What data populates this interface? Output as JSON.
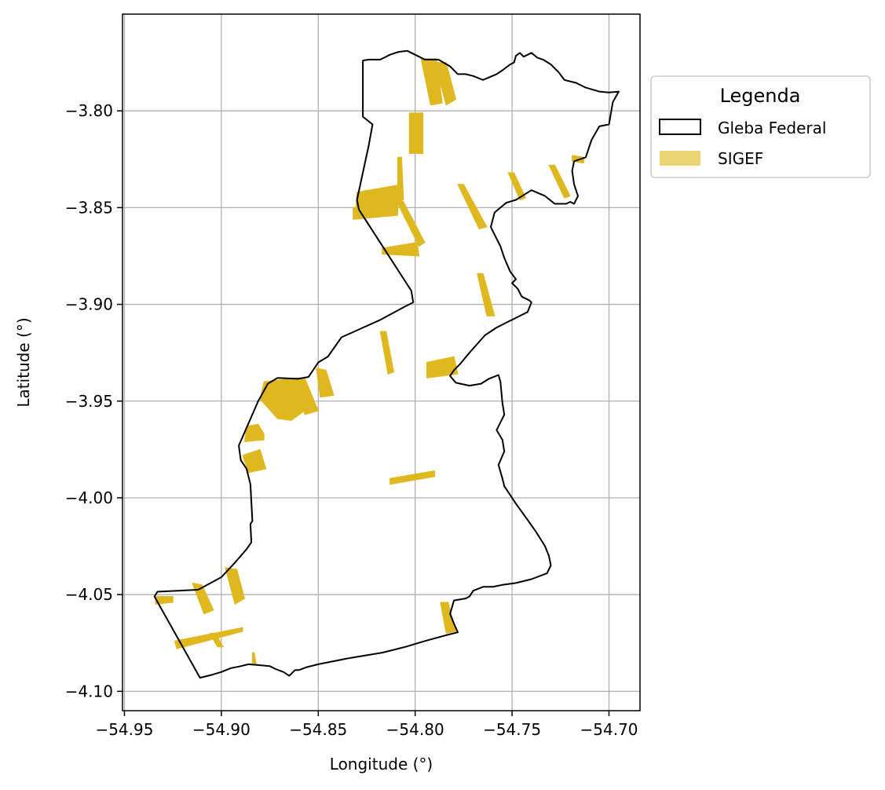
{
  "chart_data": {
    "type": "map",
    "xlabel": "Longitude (°)",
    "ylabel": "Latitude (°)",
    "xlim": [
      -54.951,
      -54.684
    ],
    "ylim": [
      -4.11,
      -3.75
    ],
    "x_ticks": [
      -54.95,
      -54.9,
      -54.85,
      -54.8,
      -54.75,
      -54.7
    ],
    "x_tick_labels": [
      "−54.95",
      "−54.90",
      "−54.85",
      "−54.80",
      "−54.75",
      "−54.70"
    ],
    "y_ticks": [
      -3.8,
      -3.85,
      -3.9,
      -3.95,
      -4.0,
      -4.05,
      -4.1
    ],
    "y_tick_labels": [
      "−3.80",
      "−3.85",
      "−3.90",
      "−3.95",
      "−4.00",
      "−4.05",
      "−4.10"
    ],
    "grid": true,
    "legend": {
      "title": "Legenda",
      "placement": "outside-right-top",
      "entries": [
        {
          "label": "Gleba Federal",
          "style": "outline",
          "color": "#000000"
        },
        {
          "label": "SIGEF",
          "style": "fill",
          "color": "#e9d673"
        }
      ]
    },
    "colors": {
      "gleba_edge": "#000000",
      "sigef_fill": "#dfb820",
      "grid": "#b0b0b0"
    },
    "gleba_federal": [
      [
        -54.9345,
        -4.051
      ],
      [
        -54.933,
        -4.0485
      ],
      [
        -54.912,
        -4.0475
      ],
      [
        -54.9,
        -4.041
      ],
      [
        -54.893,
        -4.0335
      ],
      [
        -54.887,
        -4.0265
      ],
      [
        -54.8845,
        -4.023
      ],
      [
        -54.885,
        -4.0135
      ],
      [
        -54.884,
        -4.012
      ],
      [
        -54.885,
        -3.993
      ],
      [
        -54.887,
        -3.985
      ],
      [
        -54.89,
        -3.9805
      ],
      [
        -54.891,
        -3.973
      ],
      [
        -54.881,
        -3.95
      ],
      [
        -54.876,
        -3.941
      ],
      [
        -54.871,
        -3.938
      ],
      [
        -54.8605,
        -3.9385
      ],
      [
        -54.855,
        -3.9375
      ],
      [
        -54.85,
        -3.93
      ],
      [
        -54.845,
        -3.927
      ],
      [
        -54.838,
        -3.917
      ],
      [
        -54.818,
        -3.908
      ],
      [
        -54.805,
        -3.901
      ],
      [
        -54.801,
        -3.899
      ],
      [
        -54.802,
        -3.893
      ],
      [
        -54.829,
        -3.851
      ],
      [
        -54.83,
        -3.846
      ],
      [
        -54.824,
        -3.818
      ],
      [
        -54.822,
        -3.807
      ],
      [
        -54.827,
        -3.803
      ],
      [
        -54.827,
        -3.774
      ],
      [
        -54.824,
        -3.7735
      ],
      [
        -54.818,
        -3.7735
      ],
      [
        -54.813,
        -3.771
      ],
      [
        -54.8085,
        -3.7695
      ],
      [
        -54.804,
        -3.769
      ],
      [
        -54.8,
        -3.771
      ],
      [
        -54.795,
        -3.7735
      ],
      [
        -54.788,
        -3.7735
      ],
      [
        -54.782,
        -3.777
      ],
      [
        -54.778,
        -3.781
      ],
      [
        -54.774,
        -3.781
      ],
      [
        -54.77,
        -3.782
      ],
      [
        -54.765,
        -3.784
      ],
      [
        -54.758,
        -3.781
      ],
      [
        -54.755,
        -3.779
      ],
      [
        -54.751,
        -3.776
      ],
      [
        -54.749,
        -3.775
      ],
      [
        -54.748,
        -3.7715
      ],
      [
        -54.746,
        -3.77
      ],
      [
        -54.744,
        -3.772
      ],
      [
        -54.74,
        -3.77
      ],
      [
        -54.737,
        -3.7725
      ],
      [
        -54.734,
        -3.7735
      ],
      [
        -54.73,
        -3.776
      ],
      [
        -54.726,
        -3.78
      ],
      [
        -54.723,
        -3.784
      ],
      [
        -54.717,
        -3.7855
      ],
      [
        -54.712,
        -3.788
      ],
      [
        -54.705,
        -3.79
      ],
      [
        -54.7,
        -3.7905
      ],
      [
        -54.695,
        -3.79
      ],
      [
        -54.698,
        -3.7955
      ],
      [
        -54.7,
        -3.807
      ],
      [
        -54.705,
        -3.808
      ],
      [
        -54.709,
        -3.815
      ],
      [
        -54.712,
        -3.824
      ],
      [
        -54.718,
        -3.826
      ],
      [
        -54.719,
        -3.831
      ],
      [
        -54.718,
        -3.838
      ],
      [
        -54.716,
        -3.844
      ],
      [
        -54.718,
        -3.848
      ],
      [
        -54.72,
        -3.847
      ],
      [
        -54.722,
        -3.848
      ],
      [
        -54.728,
        -3.848
      ],
      [
        -54.733,
        -3.844
      ],
      [
        -54.74,
        -3.841
      ],
      [
        -54.748,
        -3.846
      ],
      [
        -54.753,
        -3.8475
      ],
      [
        -54.759,
        -3.8525
      ],
      [
        -54.761,
        -3.86
      ],
      [
        -54.76,
        -3.862
      ],
      [
        -54.756,
        -3.87
      ],
      [
        -54.754,
        -3.876
      ],
      [
        -54.751,
        -3.883
      ],
      [
        -54.748,
        -3.887
      ],
      [
        -54.75,
        -3.889
      ],
      [
        -54.747,
        -3.892
      ],
      [
        -54.745,
        -3.896
      ],
      [
        -54.741,
        -3.898
      ],
      [
        -54.74,
        -3.899
      ],
      [
        -54.742,
        -3.904
      ],
      [
        -54.758,
        -3.912
      ],
      [
        -54.764,
        -3.916
      ],
      [
        -54.772,
        -3.925
      ],
      [
        -54.777,
        -3.931
      ],
      [
        -54.78,
        -3.934
      ],
      [
        -54.782,
        -3.937
      ],
      [
        -54.779,
        -3.9405
      ],
      [
        -54.772,
        -3.942
      ],
      [
        -54.766,
        -3.941
      ],
      [
        -54.762,
        -3.9385
      ],
      [
        -54.757,
        -3.9365
      ],
      [
        -54.756,
        -3.94
      ],
      [
        -54.755,
        -3.951
      ],
      [
        -54.754,
        -3.957
      ],
      [
        -54.758,
        -3.965
      ],
      [
        -54.755,
        -3.97
      ],
      [
        -54.754,
        -3.976
      ],
      [
        -54.757,
        -3.983
      ],
      [
        -54.755,
        -3.99
      ],
      [
        -54.754,
        -3.994
      ],
      [
        -54.752,
        -3.997
      ],
      [
        -54.748,
        -4.003
      ],
      [
        -54.743,
        -4.01
      ],
      [
        -54.738,
        -4.017
      ],
      [
        -54.733,
        -4.025
      ],
      [
        -54.731,
        -4.03
      ],
      [
        -54.73,
        -4.035
      ],
      [
        -54.732,
        -4.039
      ],
      [
        -54.74,
        -4.042
      ],
      [
        -54.748,
        -4.044
      ],
      [
        -54.755,
        -4.045
      ],
      [
        -54.76,
        -4.046
      ],
      [
        -54.765,
        -4.046
      ],
      [
        -54.77,
        -4.048
      ],
      [
        -54.772,
        -4.051
      ],
      [
        -54.774,
        -4.052
      ],
      [
        -54.78,
        -4.053
      ],
      [
        -54.782,
        -4.06
      ],
      [
        -54.78,
        -4.065
      ],
      [
        -54.778,
        -4.0695
      ],
      [
        -54.784,
        -4.071
      ],
      [
        -54.795,
        -4.074
      ],
      [
        -54.805,
        -4.077
      ],
      [
        -54.817,
        -4.08
      ],
      [
        -54.835,
        -4.083
      ],
      [
        -54.85,
        -4.086
      ],
      [
        -54.856,
        -4.0875
      ],
      [
        -54.86,
        -4.089
      ],
      [
        -54.862,
        -4.089
      ],
      [
        -54.865,
        -4.092
      ],
      [
        -54.868,
        -4.09
      ],
      [
        -54.872,
        -4.0885
      ],
      [
        -54.875,
        -4.087
      ],
      [
        -54.88,
        -4.0865
      ],
      [
        -54.886,
        -4.086
      ],
      [
        -54.89,
        -4.087
      ],
      [
        -54.895,
        -4.088
      ],
      [
        -54.9,
        -4.09
      ],
      [
        -54.905,
        -4.0915
      ],
      [
        -54.911,
        -4.093
      ],
      [
        -54.9345,
        -4.051
      ]
    ],
    "sigef": [
      [
        [
          -54.797,
          -3.773
        ],
        [
          -54.789,
          -3.773
        ],
        [
          -54.786,
          -3.796
        ],
        [
          -54.792,
          -3.797
        ]
      ],
      [
        [
          -54.79,
          -3.775
        ],
        [
          -54.784,
          -3.775
        ],
        [
          -54.779,
          -3.794
        ],
        [
          -54.784,
          -3.797
        ]
      ],
      [
        [
          -54.803,
          -3.801
        ],
        [
          -54.796,
          -3.801
        ],
        [
          -54.796,
          -3.822
        ],
        [
          -54.803,
          -3.822
        ]
      ],
      [
        [
          -54.83,
          -3.842
        ],
        [
          -54.807,
          -3.838
        ],
        [
          -54.806,
          -3.846
        ],
        [
          -54.831,
          -3.855
        ]
      ],
      [
        [
          -54.809,
          -3.824
        ],
        [
          -54.807,
          -3.824
        ],
        [
          -54.806,
          -3.846
        ],
        [
          -54.809,
          -3.846
        ]
      ],
      [
        [
          -54.832,
          -3.85
        ],
        [
          -54.809,
          -3.847
        ],
        [
          -54.809,
          -3.854
        ],
        [
          -54.832,
          -3.856
        ]
      ],
      [
        [
          -54.81,
          -3.846
        ],
        [
          -54.806,
          -3.847
        ],
        [
          -54.795,
          -3.868
        ],
        [
          -54.798,
          -3.87
        ]
      ],
      [
        [
          -54.817,
          -3.871
        ],
        [
          -54.799,
          -3.868
        ],
        [
          -54.798,
          -3.875
        ],
        [
          -54.817,
          -3.874
        ]
      ],
      [
        [
          -54.778,
          -3.838
        ],
        [
          -54.775,
          -3.838
        ],
        [
          -54.763,
          -3.86
        ],
        [
          -54.767,
          -3.861
        ]
      ],
      [
        [
          -54.752,
          -3.832
        ],
        [
          -54.749,
          -3.832
        ],
        [
          -54.743,
          -3.845
        ],
        [
          -54.746,
          -3.846
        ]
      ],
      [
        [
          -54.731,
          -3.828
        ],
        [
          -54.728,
          -3.828
        ],
        [
          -54.72,
          -3.844
        ],
        [
          -54.723,
          -3.845
        ]
      ],
      [
        [
          -54.719,
          -3.823
        ],
        [
          -54.713,
          -3.824
        ],
        [
          -54.713,
          -3.827
        ],
        [
          -54.719,
          -3.826
        ]
      ],
      [
        [
          -54.768,
          -3.884
        ],
        [
          -54.765,
          -3.884
        ],
        [
          -54.759,
          -3.906
        ],
        [
          -54.763,
          -3.906
        ]
      ],
      [
        [
          -54.818,
          -3.914
        ],
        [
          -54.815,
          -3.914
        ],
        [
          -54.811,
          -3.935
        ],
        [
          -54.814,
          -3.936
        ]
      ],
      [
        [
          -54.794,
          -3.93
        ],
        [
          -54.78,
          -3.927
        ],
        [
          -54.778,
          -3.936
        ],
        [
          -54.794,
          -3.938
        ]
      ],
      [
        [
          -54.851,
          -3.933
        ],
        [
          -54.846,
          -3.934
        ],
        [
          -54.842,
          -3.947
        ],
        [
          -54.849,
          -3.948
        ]
      ],
      [
        [
          -54.878,
          -3.94
        ],
        [
          -54.861,
          -3.938
        ],
        [
          -54.857,
          -3.955
        ],
        [
          -54.864,
          -3.96
        ],
        [
          -54.871,
          -3.959
        ],
        [
          -54.88,
          -3.949
        ]
      ],
      [
        [
          -54.861,
          -3.938
        ],
        [
          -54.857,
          -3.938
        ],
        [
          -54.85,
          -3.955
        ],
        [
          -54.857,
          -3.957
        ]
      ],
      [
        [
          -54.887,
          -3.963
        ],
        [
          -54.881,
          -3.962
        ],
        [
          -54.878,
          -3.967
        ],
        [
          -54.878,
          -3.97
        ],
        [
          -54.888,
          -3.971
        ]
      ],
      [
        [
          -54.889,
          -3.978
        ],
        [
          -54.88,
          -3.975
        ],
        [
          -54.877,
          -3.985
        ],
        [
          -54.886,
          -3.987
        ]
      ],
      [
        [
          -54.813,
          -3.99
        ],
        [
          -54.79,
          -3.986
        ],
        [
          -54.79,
          -3.989
        ],
        [
          -54.813,
          -3.993
        ]
      ],
      [
        [
          -54.898,
          -4.036
        ],
        [
          -54.892,
          -4.037
        ],
        [
          -54.888,
          -4.052
        ],
        [
          -54.893,
          -4.055
        ]
      ],
      [
        [
          -54.915,
          -4.044
        ],
        [
          -54.91,
          -4.045
        ],
        [
          -54.904,
          -4.058
        ],
        [
          -54.909,
          -4.06
        ]
      ],
      [
        [
          -54.934,
          -4.051
        ],
        [
          -54.925,
          -4.051
        ],
        [
          -54.925,
          -4.054
        ],
        [
          -54.934,
          -4.055
        ]
      ],
      [
        [
          -54.924,
          -4.074
        ],
        [
          -54.889,
          -4.067
        ],
        [
          -54.889,
          -4.069
        ],
        [
          -54.923,
          -4.078
        ]
      ],
      [
        [
          -54.906,
          -4.07
        ],
        [
          -54.903,
          -4.07
        ],
        [
          -54.899,
          -4.077
        ],
        [
          -54.902,
          -4.077
        ]
      ],
      [
        [
          -54.884,
          -4.08
        ],
        [
          -54.883,
          -4.08
        ],
        [
          -54.882,
          -4.086
        ],
        [
          -54.884,
          -4.086
        ]
      ],
      [
        [
          -54.787,
          -4.054
        ],
        [
          -54.783,
          -4.054
        ],
        [
          -54.779,
          -4.069
        ],
        [
          -54.784,
          -4.07
        ]
      ]
    ]
  }
}
